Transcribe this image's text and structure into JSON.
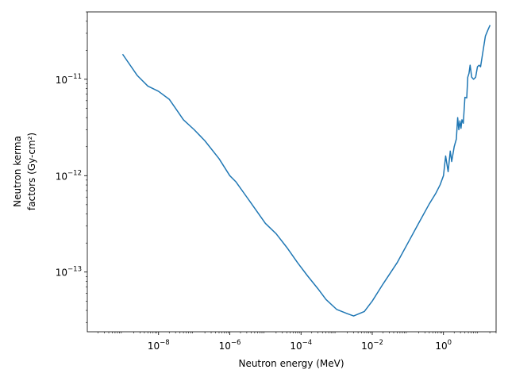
{
  "chart_data": {
    "type": "line",
    "title": "",
    "xlabel": "Neutron energy (MeV)",
    "ylabel_lines": [
      "Neutron kerma",
      "factors (Gy-cm²)"
    ],
    "xscale": "log",
    "yscale": "log",
    "xlim": [
      1e-10,
      30
    ],
    "ylim": [
      2.4e-14,
      5e-11
    ],
    "grid": false,
    "legend": "none",
    "x_ticks": [
      {
        "value": 1e-08,
        "base": "10",
        "exp": "−8"
      },
      {
        "value": 1e-06,
        "base": "10",
        "exp": "−6"
      },
      {
        "value": 0.0001,
        "base": "10",
        "exp": "−4"
      },
      {
        "value": 0.01,
        "base": "10",
        "exp": "−2"
      },
      {
        "value": 1,
        "base": "10",
        "exp": "0"
      }
    ],
    "y_ticks": [
      {
        "value": 1e-13,
        "base": "10",
        "exp": "−13"
      },
      {
        "value": 1e-12,
        "base": "10",
        "exp": "−12"
      },
      {
        "value": 1e-11,
        "base": "10",
        "exp": "−11"
      }
    ],
    "series": [
      {
        "color": "#1f77b4",
        "points": [
          [
            1e-09,
            1.8e-11
          ],
          [
            2.5e-09,
            1.1e-11
          ],
          [
            5e-09,
            8.5e-12
          ],
          [
            1e-08,
            7.5e-12
          ],
          [
            2e-08,
            6.2e-12
          ],
          [
            3e-08,
            5e-12
          ],
          [
            5e-08,
            3.8e-12
          ],
          [
            1e-07,
            3e-12
          ],
          [
            2e-07,
            2.3e-12
          ],
          [
            5e-07,
            1.5e-12
          ],
          [
            1e-06,
            1e-12
          ],
          [
            1.5e-06,
            8.6e-13
          ],
          [
            3e-06,
            6e-13
          ],
          [
            5e-06,
            4.6e-13
          ],
          [
            1e-05,
            3.2e-13
          ],
          [
            2e-05,
            2.5e-13
          ],
          [
            4e-05,
            1.8e-13
          ],
          [
            8e-05,
            1.25e-13
          ],
          [
            0.00015,
            9.2e-14
          ],
          [
            0.0003,
            6.7e-14
          ],
          [
            0.0005,
            5.2e-14
          ],
          [
            0.001,
            4.1e-14
          ],
          [
            0.002,
            3.7e-14
          ],
          [
            0.003,
            3.5e-14
          ],
          [
            0.006,
            3.9e-14
          ],
          [
            0.01,
            5e-14
          ],
          [
            0.02,
            7.5e-14
          ],
          [
            0.05,
            1.25e-13
          ],
          [
            0.1,
            2e-13
          ],
          [
            0.2,
            3.2e-13
          ],
          [
            0.4,
            5.1e-13
          ],
          [
            0.6,
            6.5e-13
          ],
          [
            0.8,
            8e-13
          ],
          [
            1.0,
            1e-12
          ],
          [
            1.15,
            1.6e-12
          ],
          [
            1.35,
            1.1e-12
          ],
          [
            1.55,
            1.8e-12
          ],
          [
            1.7,
            1.4e-12
          ],
          [
            2.0,
            2e-12
          ],
          [
            2.3,
            2.4e-12
          ],
          [
            2.5,
            4e-12
          ],
          [
            2.7,
            3e-12
          ],
          [
            2.9,
            3.7e-12
          ],
          [
            3.1,
            3.1e-12
          ],
          [
            3.3,
            3.8e-12
          ],
          [
            3.6,
            3.5e-12
          ],
          [
            4.0,
            6.5e-12
          ],
          [
            4.5,
            6.4e-12
          ],
          [
            4.8,
            1.05e-11
          ],
          [
            5.2,
            1.15e-11
          ],
          [
            5.6,
            1.4e-11
          ],
          [
            6.2,
            1.05e-11
          ],
          [
            7.0,
            1e-11
          ],
          [
            8.0,
            1.05e-11
          ],
          [
            9.0,
            1.35e-11
          ],
          [
            10.0,
            1.4e-11
          ],
          [
            11.0,
            1.35e-11
          ],
          [
            13.0,
            2e-11
          ],
          [
            15.0,
            2.8e-11
          ],
          [
            18.0,
            3.3e-11
          ],
          [
            20.0,
            3.6e-11
          ]
        ]
      }
    ]
  }
}
